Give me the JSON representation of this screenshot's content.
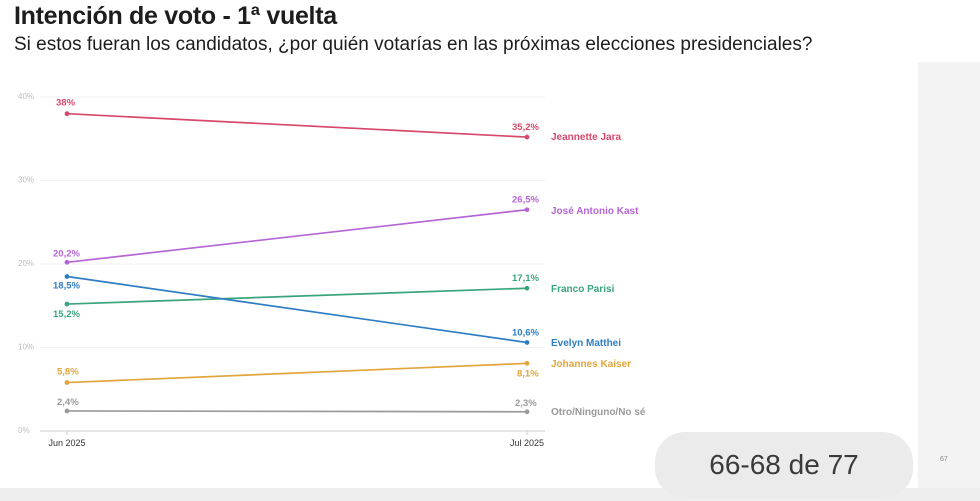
{
  "header": {
    "title": "Intención de voto - 1ª vuelta",
    "subtitle": "Si estos fueran los candidatos, ¿por quién votarías en las próximas elecciones presidenciales?"
  },
  "chart_data": {
    "type": "line",
    "x": [
      "Jun 2025",
      "Jul 2025"
    ],
    "ylim": [
      0,
      40
    ],
    "yticks": [
      "0%",
      "10%",
      "20%",
      "30%",
      "40%"
    ],
    "grid": true,
    "series": [
      {
        "name": "Jeannette Jara",
        "values": [
          38,
          35.2
        ],
        "labels": [
          "38%",
          "35,2%"
        ],
        "color": "#d6496d"
      },
      {
        "name": "José Antonio Kast",
        "values": [
          20.2,
          26.5
        ],
        "labels": [
          "20,2%",
          "26,5%"
        ],
        "color": "#b565d6"
      },
      {
        "name": "Franco Parisi",
        "values": [
          15.2,
          17.1
        ],
        "labels": [
          "15,2%",
          "17,1%"
        ],
        "color": "#3aa57c"
      },
      {
        "name": "Evelyn Matthei",
        "values": [
          18.5,
          10.6
        ],
        "labels": [
          "18,5%",
          "10,6%"
        ],
        "color": "#2f7ec4"
      },
      {
        "name": "Johannes Kaiser",
        "values": [
          5.8,
          8.1
        ],
        "labels": [
          "5,8%",
          "8,1%"
        ],
        "color": "#e3a63c"
      },
      {
        "name": "Otro/Ninguno/No sé",
        "values": [
          2.4,
          2.3
        ],
        "labels": [
          "2,4%",
          "2,3%"
        ],
        "color": "#9a9a9a"
      }
    ]
  },
  "overlay": {
    "counter": "66-68 de 77",
    "side_number": "67"
  }
}
